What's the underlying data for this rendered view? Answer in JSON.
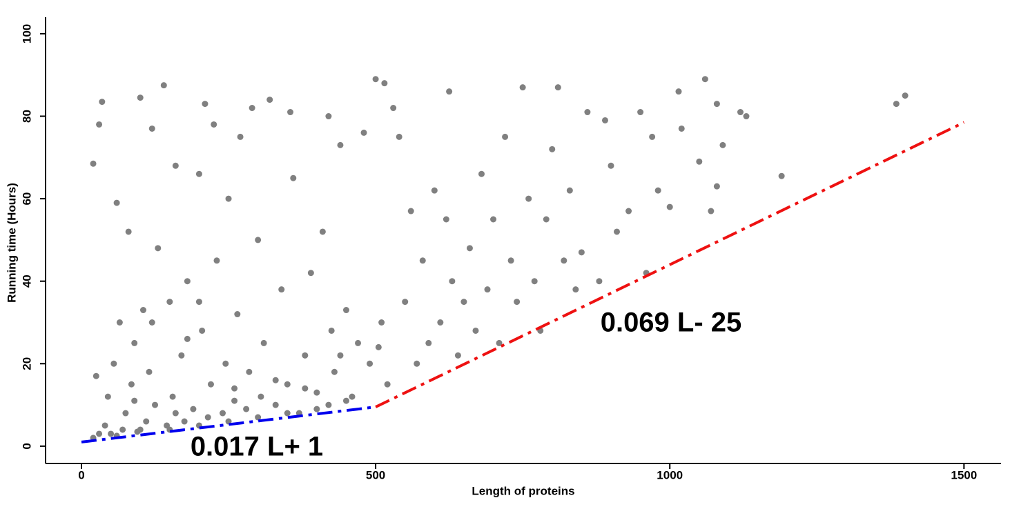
{
  "chart_data": {
    "type": "scatter",
    "xlabel": "Length of proteins",
    "ylabel": "Running time (Hours)",
    "xlim": [
      -61,
      1563
    ],
    "ylim": [
      -4.2,
      104
    ],
    "xticks": [
      0,
      500,
      1000,
      1500
    ],
    "yticks": [
      0,
      20,
      40,
      60,
      80,
      100
    ],
    "grid": false,
    "series": [
      {
        "color": "#808080",
        "x": [
          20,
          25,
          20,
          30,
          35,
          40,
          45,
          50,
          55,
          60,
          65,
          70,
          75,
          80,
          85,
          90,
          95,
          100,
          105,
          110,
          115,
          120,
          125,
          130,
          140,
          145,
          150,
          155,
          160,
          170,
          175,
          180,
          190,
          200,
          205,
          210,
          215,
          220,
          225,
          230,
          240,
          245,
          250,
          260,
          265,
          270,
          280,
          285,
          290,
          300,
          305,
          310,
          320,
          330,
          340,
          350,
          355,
          360,
          370,
          380,
          390,
          400,
          410,
          420,
          425,
          430,
          440,
          450,
          460,
          470,
          480,
          490,
          500,
          505,
          510,
          515,
          520,
          530,
          540,
          550,
          560,
          570,
          580,
          590,
          600,
          610,
          620,
          625,
          630,
          640,
          650,
          660,
          670,
          680,
          690,
          700,
          710,
          720,
          730,
          740,
          750,
          760,
          770,
          780,
          790,
          800,
          810,
          820,
          830,
          840,
          850,
          860,
          880,
          890,
          900,
          910,
          930,
          950,
          960,
          970,
          980,
          1000,
          1015,
          1020,
          1050,
          1060,
          1070,
          1080,
          1080,
          1090,
          1120,
          1130,
          1190,
          1385,
          1400,
          30,
          60,
          100,
          150,
          200,
          250,
          300,
          350,
          400,
          450,
          120,
          200,
          330,
          440,
          160,
          260,
          90,
          180,
          380,
          420
        ],
        "values": [
          2,
          17,
          68.5,
          78,
          83.5,
          5,
          12,
          3,
          20,
          59,
          30,
          4,
          8,
          52,
          15,
          25,
          3.5,
          84.5,
          33,
          6,
          18,
          77,
          10,
          48,
          87.5,
          5,
          35,
          12,
          68,
          22,
          6,
          40,
          9,
          66,
          28,
          83,
          7,
          15,
          78,
          45,
          8,
          20,
          60,
          11,
          32,
          75,
          9,
          18,
          82,
          50,
          12,
          25,
          84,
          10,
          38,
          15,
          81,
          65,
          8,
          22,
          42,
          13,
          52,
          80,
          28,
          18,
          73,
          33,
          12,
          25,
          76,
          20,
          89,
          24,
          30,
          88,
          15,
          82,
          75,
          35,
          57,
          20,
          45,
          25,
          62,
          30,
          55,
          86,
          40,
          22,
          35,
          48,
          28,
          66,
          38,
          55,
          25,
          75,
          45,
          35,
          87,
          60,
          40,
          28,
          55,
          72,
          87,
          45,
          62,
          38,
          47,
          81,
          40,
          79,
          68,
          52,
          57,
          81,
          42,
          75,
          62,
          58,
          86,
          77,
          69,
          89,
          57,
          83,
          63,
          73,
          81,
          80,
          65.5,
          83,
          85,
          3,
          2.5,
          4,
          4,
          5,
          6,
          7,
          8,
          9,
          11,
          30,
          35,
          16,
          22,
          8,
          14,
          11,
          26,
          14,
          10
        ]
      }
    ],
    "lines": [
      {
        "color": "#0000ee",
        "x": [
          0,
          500
        ],
        "values": [
          1,
          9.5
        ]
      },
      {
        "color": "#ee1111",
        "x": [
          500,
          1500
        ],
        "values": [
          9.5,
          78.5
        ]
      }
    ],
    "annotations": [
      {
        "text": "0.017 L+ 1",
        "color": "#0000ee"
      },
      {
        "text": "0.069 L- 25",
        "color": "#ee1111"
      }
    ]
  }
}
